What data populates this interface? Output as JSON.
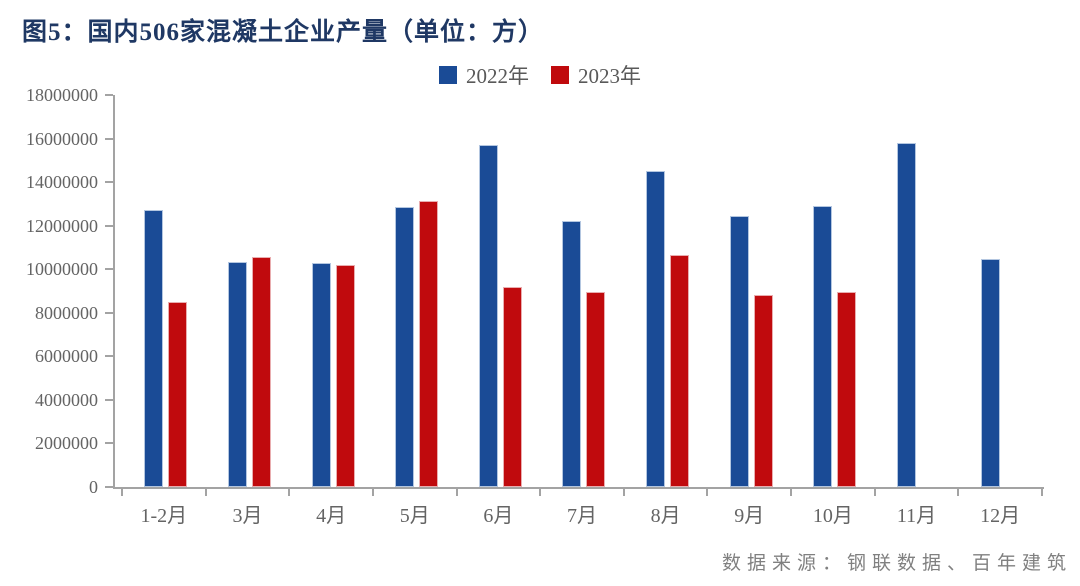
{
  "chart_data": {
    "type": "bar",
    "title": "图5：国内506家混凝土企业产量（单位：方）",
    "source": "数据来源：钢联数据、百年建筑",
    "categories": [
      "1-2月",
      "3月",
      "4月",
      "5月",
      "6月",
      "7月",
      "8月",
      "9月",
      "10月",
      "11月",
      "12月"
    ],
    "series": [
      {
        "name": "2022年",
        "color": "#1A4B96",
        "edge_color": "#B3C6E0",
        "values": [
          12700000,
          10350000,
          10300000,
          12850000,
          15700000,
          12200000,
          14500000,
          12450000,
          12900000,
          15800000,
          10450000
        ]
      },
      {
        "name": "2023年",
        "color": "#C00A0D",
        "edge_color": "#E9ADAF",
        "values": [
          8500000,
          10550000,
          10200000,
          13150000,
          9200000,
          8950000,
          10650000,
          8800000,
          8950000,
          null,
          null
        ]
      }
    ],
    "ylim": [
      0,
      18000000
    ],
    "yticks": [
      0,
      2000000,
      4000000,
      6000000,
      8000000,
      10000000,
      12000000,
      14000000,
      16000000,
      18000000
    ],
    "xlabel": "",
    "ylabel": "",
    "grid": false,
    "legend_position": "top-center",
    "colors": {
      "title": "#1F3864",
      "axis": "#A3A3A3",
      "tick_labels": "#646464",
      "legend_text": "#595959",
      "source_text": "#808080"
    }
  }
}
